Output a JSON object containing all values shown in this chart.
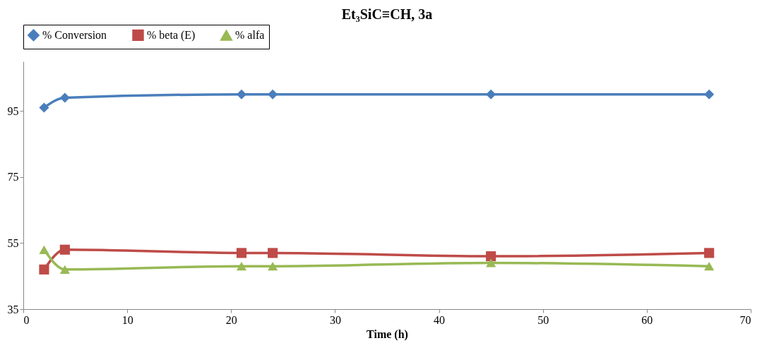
{
  "chart_data": {
    "type": "line",
    "title": "Et₃SiC≡CH, 3a",
    "xlabel": "Time (h)",
    "x": [
      2,
      4,
      21,
      24,
      45,
      66
    ],
    "series": [
      {
        "name": "% Conversion",
        "color": "#4a7ebb",
        "marker": "diamond",
        "values": [
          96,
          99,
          100,
          100,
          100,
          100
        ]
      },
      {
        "name": "% beta (E)",
        "color": "#be4b48",
        "marker": "square",
        "values": [
          47,
          53,
          52,
          52,
          51,
          52
        ]
      },
      {
        "name": "% alfa",
        "color": "#98b954",
        "marker": "triangle",
        "values": [
          53,
          47,
          48,
          48,
          49,
          48
        ]
      }
    ],
    "xlim": [
      0,
      70
    ],
    "xticks": [
      0,
      10,
      20,
      30,
      40,
      50,
      60,
      70
    ],
    "ylim": [
      35,
      110
    ],
    "yticks": [
      35,
      55,
      75,
      95
    ],
    "grid": false,
    "legend": "top",
    "line_style": "solid"
  }
}
